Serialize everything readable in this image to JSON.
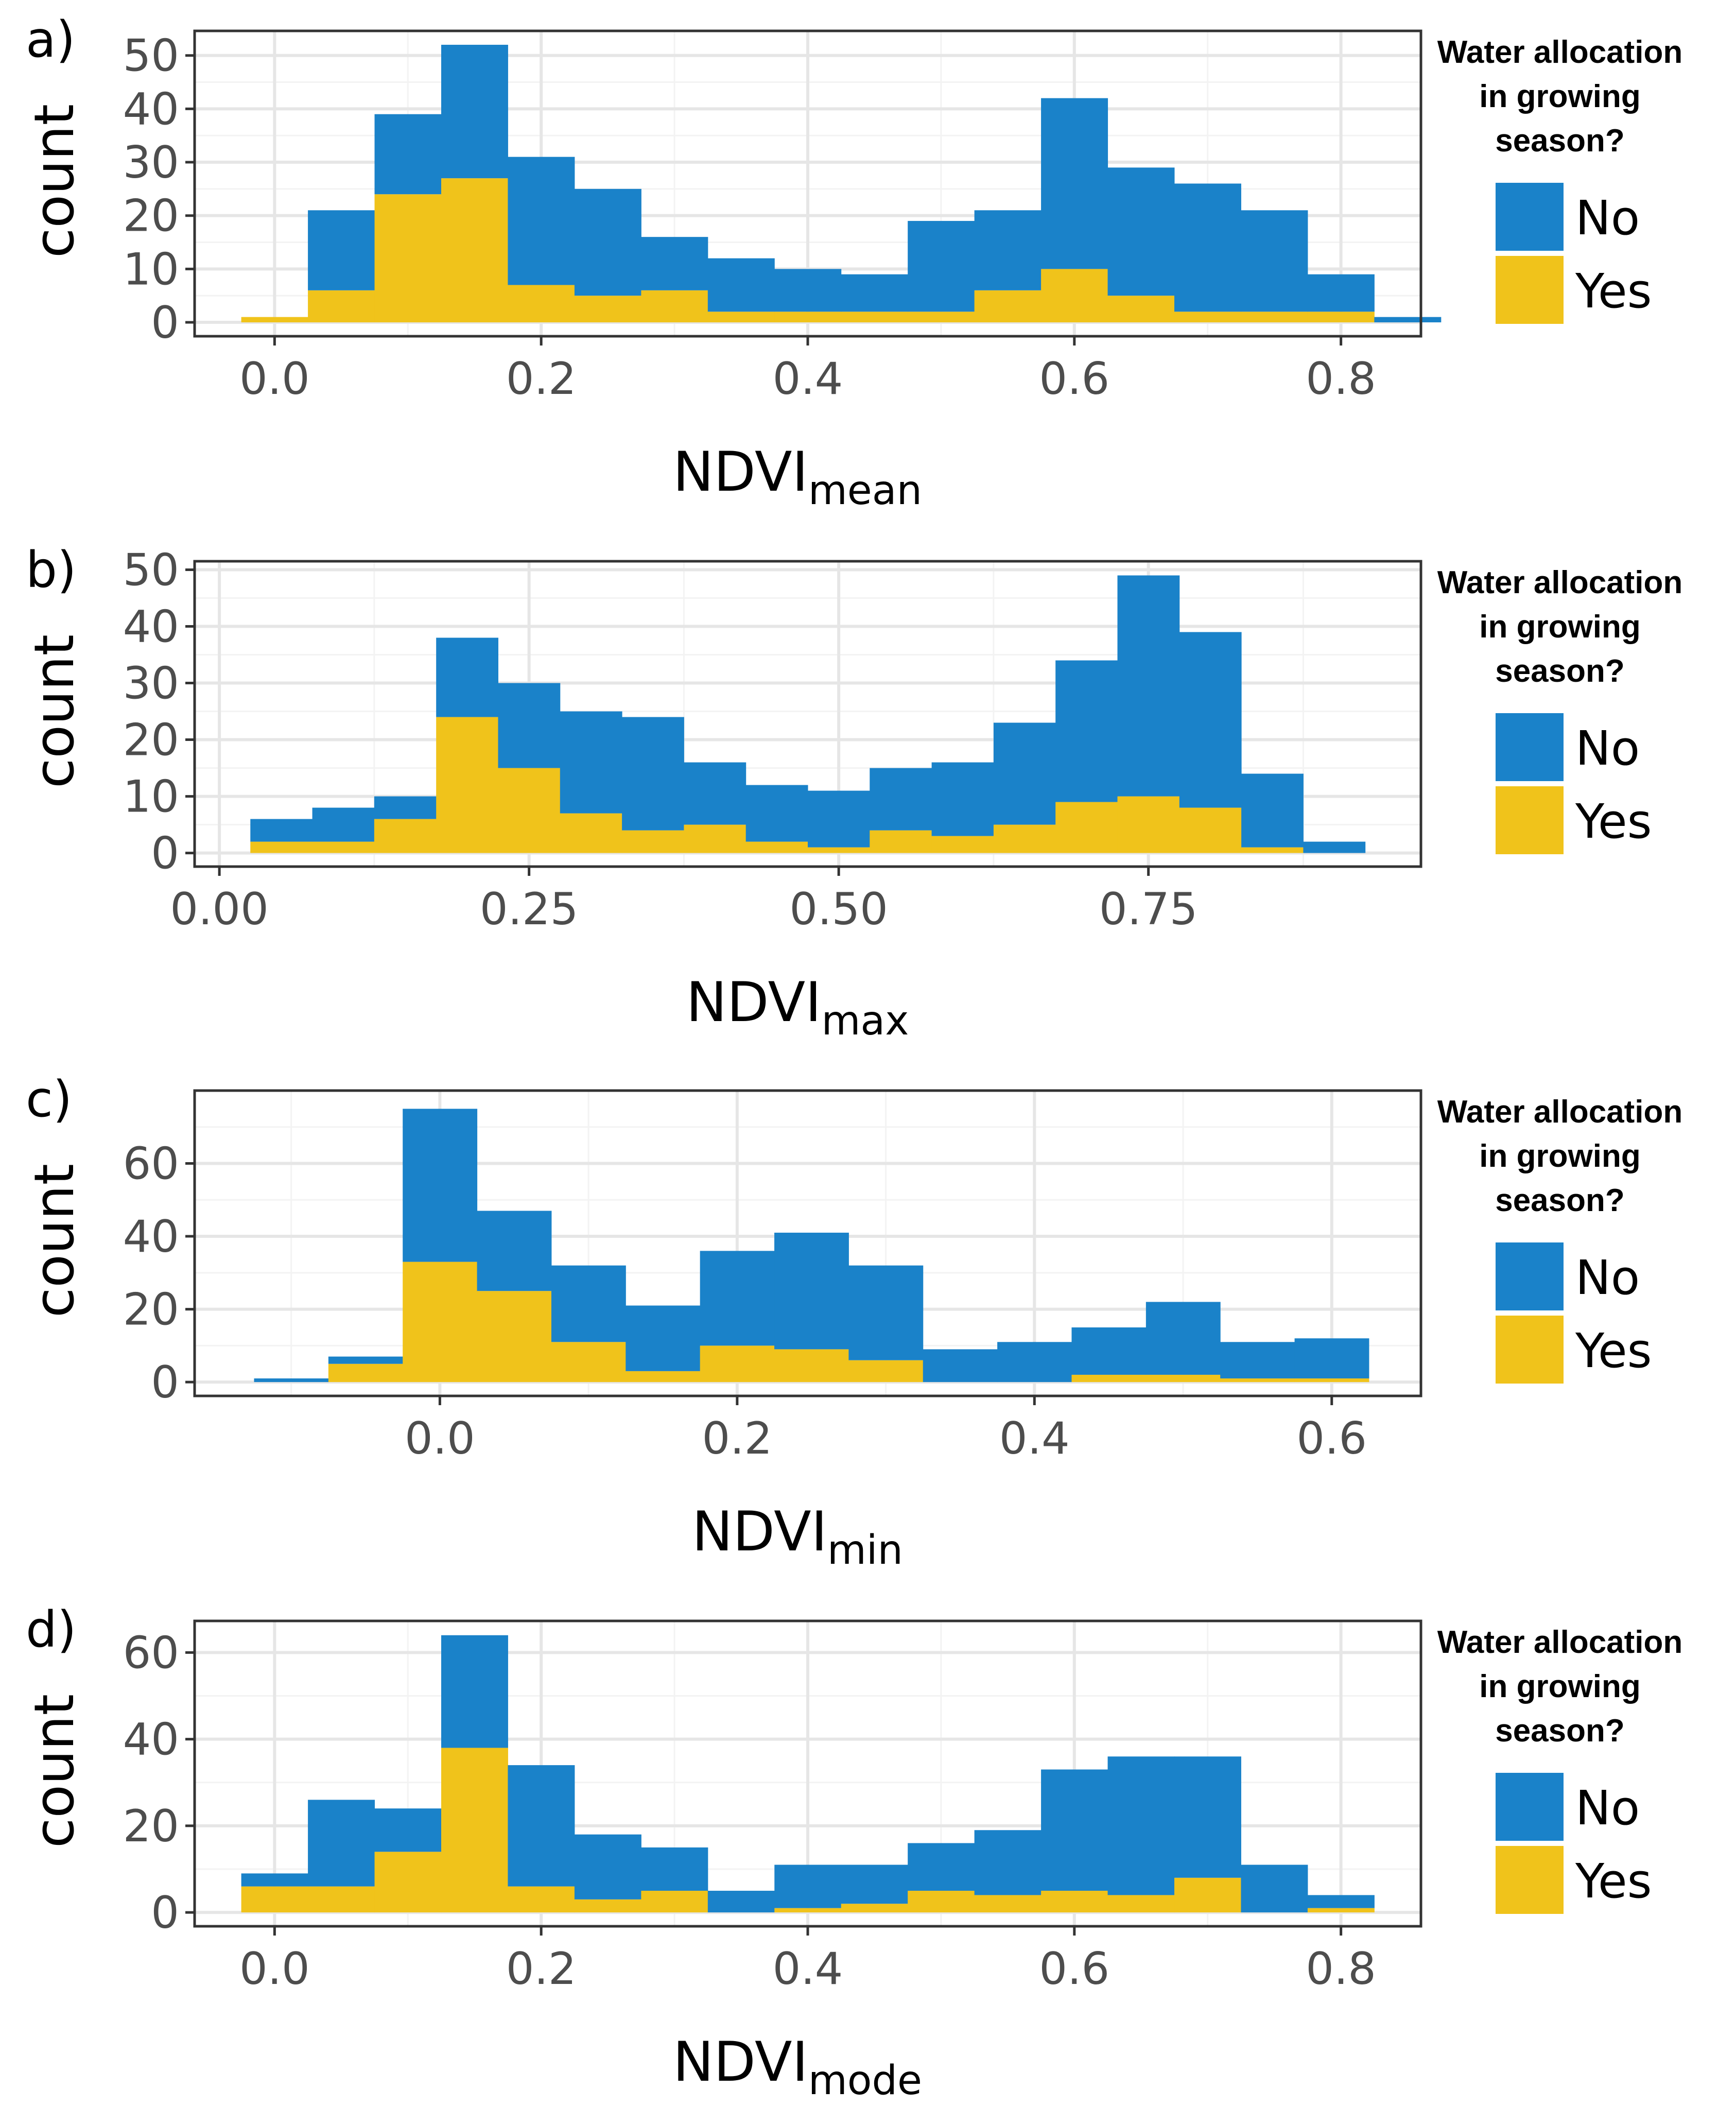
{
  "colors": {
    "No": "#1a82c9",
    "Yes": "#f0c31b",
    "grid": "#e6e6e6",
    "frame": "#333333"
  },
  "legend": {
    "title_lines": [
      "Water allocation",
      "in growing",
      "season?"
    ],
    "entries": [
      {
        "key": "No",
        "label": "No"
      },
      {
        "key": "Yes",
        "label": "Yes"
      }
    ]
  },
  "chart_data": [
    {
      "type": "bar",
      "stacked": true,
      "panel_label": "a)",
      "xlabel_main": "NDVI",
      "xlabel_sub": "mean",
      "ylabel": "count",
      "xlim": [
        -0.06,
        0.86
      ],
      "ylim": [
        -2.6,
        54.6
      ],
      "xticks": [
        0.0,
        0.2,
        0.4,
        0.6,
        0.8
      ],
      "xtick_labels": [
        "0.0",
        "0.2",
        "0.4",
        "0.6",
        "0.8"
      ],
      "yticks": [
        0,
        10,
        20,
        30,
        40,
        50
      ],
      "ytick_labels": [
        "0",
        "10",
        "20",
        "30",
        "40",
        "50"
      ],
      "bin_width": 0.05,
      "bin_start": -0.025,
      "series": [
        {
          "name": "No",
          "values": [
            0,
            15,
            15,
            25,
            24,
            20,
            10,
            10,
            8,
            7,
            17,
            15,
            32,
            24,
            24,
            19,
            7,
            1
          ]
        },
        {
          "name": "Yes",
          "values": [
            1,
            6,
            24,
            27,
            7,
            5,
            6,
            2,
            2,
            2,
            2,
            6,
            10,
            5,
            2,
            2,
            2,
            0
          ]
        }
      ]
    },
    {
      "type": "bar",
      "stacked": true,
      "panel_label": "b)",
      "xlabel_main": "NDVI",
      "xlabel_sub": "max",
      "ylabel": "count",
      "xlim": [
        -0.02,
        0.97
      ],
      "ylim": [
        -2.4,
        51.5
      ],
      "xticks": [
        0.0,
        0.25,
        0.5,
        0.75
      ],
      "xtick_labels": [
        "0.00",
        "0.25",
        "0.50",
        "0.75"
      ],
      "yticks": [
        0,
        10,
        20,
        30,
        40,
        50
      ],
      "ytick_labels": [
        "0",
        "10",
        "20",
        "30",
        "40",
        "50"
      ],
      "bin_width": 0.05,
      "bin_start": 0.025,
      "series": [
        {
          "name": "No",
          "values": [
            4,
            6,
            4,
            14,
            15,
            18,
            20,
            11,
            10,
            10,
            11,
            13,
            18,
            25,
            39,
            31,
            13,
            2
          ]
        },
        {
          "name": "Yes",
          "values": [
            2,
            2,
            6,
            24,
            15,
            7,
            4,
            5,
            2,
            1,
            4,
            3,
            5,
            9,
            10,
            8,
            1,
            0
          ]
        }
      ]
    },
    {
      "type": "bar",
      "stacked": true,
      "panel_label": "c)",
      "xlabel_main": "NDVI",
      "xlabel_sub": "min",
      "ylabel": "count",
      "xlim": [
        -0.165,
        0.66
      ],
      "ylim": [
        -3.8,
        80
      ],
      "xticks": [
        0.0,
        0.2,
        0.4,
        0.6
      ],
      "xtick_labels": [
        "0.0",
        "0.2",
        "0.4",
        "0.6"
      ],
      "yticks": [
        0,
        20,
        40,
        60
      ],
      "ytick_labels": [
        "0",
        "20",
        "40",
        "60"
      ],
      "bin_width": 0.05,
      "bin_start": -0.125,
      "series": [
        {
          "name": "No",
          "values": [
            1,
            2,
            42,
            22,
            21,
            18,
            26,
            32,
            26,
            9,
            11,
            13,
            20,
            10,
            11
          ]
        },
        {
          "name": "Yes",
          "values": [
            0,
            5,
            33,
            25,
            11,
            3,
            10,
            9,
            6,
            0,
            0,
            2,
            2,
            1,
            1
          ]
        }
      ]
    },
    {
      "type": "bar",
      "stacked": true,
      "panel_label": "d)",
      "xlabel_main": "NDVI",
      "xlabel_sub": "mode",
      "ylabel": "count",
      "xlim": [
        -0.06,
        0.86
      ],
      "ylim": [
        -3.2,
        67.3
      ],
      "xticks": [
        0.0,
        0.2,
        0.4,
        0.6,
        0.8
      ],
      "xtick_labels": [
        "0.0",
        "0.2",
        "0.4",
        "0.6",
        "0.8"
      ],
      "yticks": [
        0,
        20,
        40,
        60
      ],
      "ytick_labels": [
        "0",
        "20",
        "40",
        "60"
      ],
      "bin_width": 0.05,
      "bin_start": -0.025,
      "series": [
        {
          "name": "No",
          "values": [
            3,
            20,
            10,
            26,
            28,
            15,
            10,
            5,
            10,
            9,
            11,
            15,
            28,
            32,
            28,
            11,
            3
          ]
        },
        {
          "name": "Yes",
          "values": [
            6,
            6,
            14,
            38,
            6,
            3,
            5,
            0,
            1,
            2,
            5,
            4,
            5,
            4,
            8,
            0,
            1
          ]
        }
      ]
    }
  ]
}
